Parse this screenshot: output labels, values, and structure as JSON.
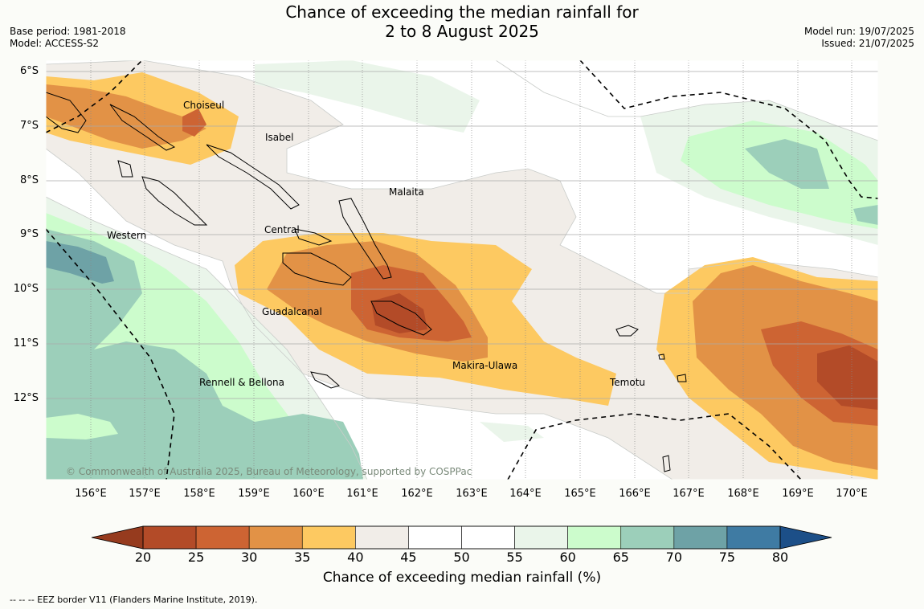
{
  "title_line1": "Chance of exceeding the median rainfall for",
  "title_line2": "2 to 8 August 2025",
  "base_period": "Base period: 1981-2018",
  "model": "Model: ACCESS-S2",
  "model_run": "Model run: 19/07/2025",
  "issued": "Issued: 21/07/2025",
  "lat_labels": [
    "6°S",
    "7°S",
    "8°S",
    "9°S",
    "10°S",
    "11°S",
    "12°S"
  ],
  "lon_labels": [
    "156°E",
    "157°E",
    "158°E",
    "159°E",
    "160°E",
    "161°E",
    "162°E",
    "163°E",
    "164°E",
    "165°E",
    "166°E",
    "167°E",
    "168°E",
    "169°E",
    "170°E"
  ],
  "places": {
    "choiseul": "Choiseul",
    "isabel": "Isabel",
    "malaita": "Malaita",
    "western": "Western",
    "central": "Central",
    "guadalcanal": "Guadalcanal",
    "makira": "Makira-Ulawa",
    "rennell": "Rennell & Bellona",
    "temotu": "Temotu"
  },
  "copyright": "© Commonwealth of Australia 2025, Bureau of Meteorology, supported by COSPPac",
  "colorbar": {
    "ticks": [
      "20",
      "25",
      "30",
      "35",
      "40",
      "45",
      "50",
      "55",
      "60",
      "65",
      "70",
      "75",
      "80"
    ],
    "colors": [
      "#b34b28",
      "#cd6433",
      "#e29246",
      "#fdc961",
      "#f1ede8",
      "#ffffff",
      "#ffffff",
      "#eaf5ea",
      "#ccfccc",
      "#9ccfba",
      "#6ea2a6",
      "#3f7ba3"
    ],
    "under_color": "#963b1e",
    "over_color": "#1c4f88",
    "label": "Chance of exceeding median rainfall (%)"
  },
  "eez_note": "--  --  -- EEZ border V11 (Flanders Marine Institute, 2019)."
}
